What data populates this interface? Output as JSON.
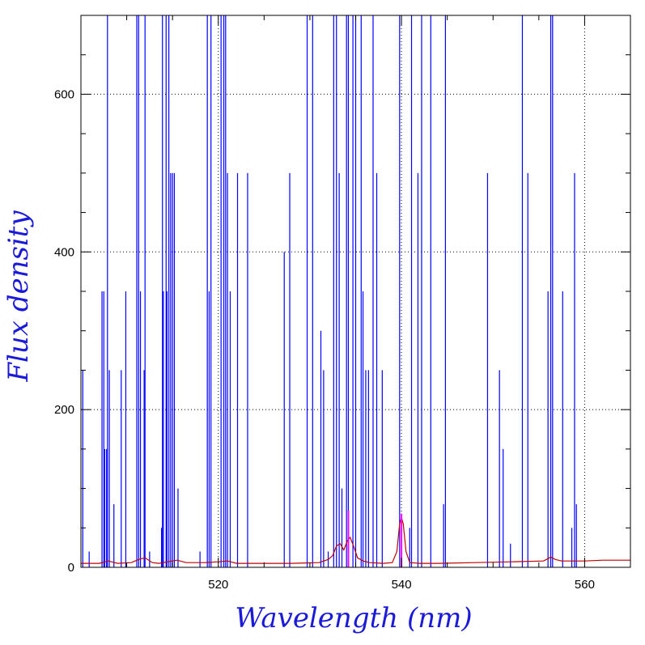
{
  "chart_data": {
    "type": "line",
    "title": "",
    "xlabel": "Wavelength (nm)",
    "ylabel": "Flux density",
    "xlim": [
      505.0,
      565.0
    ],
    "ylim": [
      0,
      700
    ],
    "x_ticks": [
      520,
      540,
      560
    ],
    "y_ticks": [
      0,
      200,
      400,
      600
    ],
    "x_tick_labels": [
      "520",
      "540",
      "560"
    ],
    "y_tick_labels": [
      "0",
      "200",
      "400",
      "600"
    ],
    "x_minor_ticks": [
      510,
      515,
      525,
      530,
      535,
      545,
      550,
      555
    ],
    "y_minor_ticks": [
      50,
      100,
      150,
      250,
      300,
      350,
      450,
      500,
      550,
      650
    ],
    "grid": true,
    "grid_style": "dotted",
    "colors": {
      "axis_title": "#1a1ad8",
      "reference_lines": "#0000ff",
      "spectrum": "#c00000",
      "emission_lines": "#ff00ff"
    },
    "reference_lines": {
      "name": "",
      "lines": [
        [
          505.2,
          250
        ],
        [
          505.9,
          20
        ],
        [
          507.3,
          350
        ],
        [
          507.5,
          350
        ],
        [
          507.6,
          150
        ],
        [
          507.8,
          150
        ],
        [
          507.9,
          700
        ],
        [
          508.1,
          250
        ],
        [
          508.6,
          80
        ],
        [
          509.4,
          250
        ],
        [
          509.9,
          350
        ],
        [
          511.1,
          700
        ],
        [
          511.3,
          700
        ],
        [
          511.5,
          350
        ],
        [
          511.9,
          250
        ],
        [
          512.0,
          700
        ],
        [
          512.5,
          20
        ],
        [
          513.8,
          50
        ],
        [
          513.9,
          700
        ],
        [
          514.0,
          350
        ],
        [
          514.3,
          700
        ],
        [
          514.4,
          350
        ],
        [
          514.6,
          700
        ],
        [
          514.8,
          500
        ],
        [
          515.0,
          500
        ],
        [
          515.2,
          500
        ],
        [
          515.6,
          100
        ],
        [
          518.0,
          20
        ],
        [
          518.8,
          700
        ],
        [
          519.0,
          350
        ],
        [
          519.2,
          700
        ],
        [
          520.3,
          700
        ],
        [
          520.6,
          700
        ],
        [
          520.8,
          700
        ],
        [
          521.0,
          500
        ],
        [
          521.3,
          350
        ],
        [
          522.1,
          500
        ],
        [
          523.2,
          500
        ],
        [
          527.2,
          400
        ],
        [
          527.8,
          500
        ],
        [
          529.7,
          700
        ],
        [
          530.3,
          700
        ],
        [
          531.2,
          300
        ],
        [
          531.5,
          250
        ],
        [
          532.0,
          20
        ],
        [
          532.6,
          700
        ],
        [
          532.9,
          700
        ],
        [
          533.2,
          500
        ],
        [
          533.5,
          100
        ],
        [
          534.0,
          700
        ],
        [
          534.2,
          700
        ],
        [
          534.7,
          700
        ],
        [
          535.0,
          700
        ],
        [
          535.6,
          700
        ],
        [
          535.8,
          350
        ],
        [
          536.1,
          250
        ],
        [
          536.4,
          250
        ],
        [
          536.9,
          700
        ],
        [
          537.3,
          500
        ],
        [
          537.9,
          250
        ],
        [
          539.8,
          700
        ],
        [
          540.9,
          50
        ],
        [
          541.1,
          700
        ],
        [
          541.8,
          500
        ],
        [
          542.2,
          700
        ],
        [
          543.2,
          700
        ],
        [
          544.6,
          80
        ],
        [
          544.8,
          700
        ],
        [
          549.4,
          500
        ],
        [
          550.7,
          250
        ],
        [
          551.1,
          150
        ],
        [
          551.9,
          30
        ],
        [
          553.2,
          700
        ],
        [
          553.8,
          500
        ],
        [
          556.0,
          350
        ],
        [
          556.3,
          700
        ],
        [
          556.5,
          700
        ],
        [
          557.6,
          350
        ],
        [
          558.6,
          50
        ],
        [
          558.9,
          500
        ],
        [
          559.1,
          80
        ]
      ]
    },
    "emission_lines": {
      "name": "",
      "lines": [
        [
          534.2,
          72
        ],
        [
          540.0,
          68
        ]
      ]
    },
    "spectrum": {
      "name": "",
      "points": [
        [
          505.0,
          5
        ],
        [
          507.0,
          5
        ],
        [
          508.0,
          8
        ],
        [
          509.0,
          5
        ],
        [
          510.5,
          6
        ],
        [
          511.3,
          10
        ],
        [
          512.0,
          12
        ],
        [
          512.8,
          6
        ],
        [
          513.5,
          5
        ],
        [
          514.5,
          7
        ],
        [
          515.5,
          9
        ],
        [
          516.5,
          6
        ],
        [
          518.5,
          6
        ],
        [
          520.0,
          7
        ],
        [
          521.0,
          8
        ],
        [
          522.0,
          5
        ],
        [
          525.0,
          5
        ],
        [
          528.0,
          5
        ],
        [
          531.0,
          6
        ],
        [
          532.0,
          10
        ],
        [
          532.5,
          15
        ],
        [
          532.9,
          27
        ],
        [
          533.3,
          30
        ],
        [
          533.7,
          22
        ],
        [
          534.1,
          34
        ],
        [
          534.4,
          38
        ],
        [
          534.8,
          26
        ],
        [
          535.2,
          12
        ],
        [
          535.8,
          8
        ],
        [
          536.5,
          6
        ],
        [
          538.0,
          5
        ],
        [
          539.0,
          6
        ],
        [
          539.5,
          20
        ],
        [
          539.8,
          55
        ],
        [
          540.0,
          63
        ],
        [
          540.2,
          55
        ],
        [
          540.5,
          20
        ],
        [
          540.9,
          6
        ],
        [
          542.0,
          5
        ],
        [
          544.0,
          5
        ],
        [
          548.0,
          6
        ],
        [
          552.0,
          7
        ],
        [
          555.5,
          8
        ],
        [
          556.0,
          11
        ],
        [
          556.3,
          13
        ],
        [
          556.8,
          10
        ],
        [
          557.5,
          8
        ],
        [
          560.0,
          8
        ],
        [
          562.0,
          9
        ],
        [
          565.0,
          9
        ]
      ]
    }
  }
}
